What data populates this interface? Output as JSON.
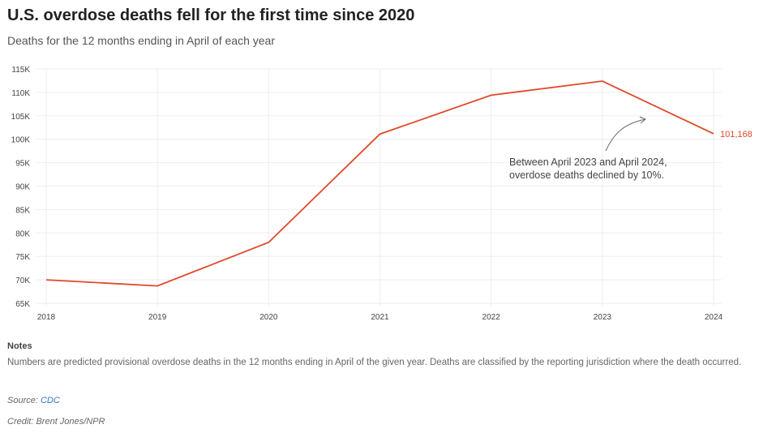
{
  "header": {
    "title": "U.S. overdose deaths fell for the first time since 2020",
    "subtitle": "Deaths for the 12 months ending in April of each year"
  },
  "chart_data": {
    "type": "line",
    "x": [
      "2018",
      "2019",
      "2020",
      "2021",
      "2022",
      "2023",
      "2024"
    ],
    "series": [
      {
        "values": [
          70000,
          68700,
          78000,
          101100,
          109400,
          112400,
          101168
        ],
        "color": "#e04a2b"
      }
    ],
    "ylim": [
      65000,
      115000
    ],
    "yticks": [
      "65K",
      "70K",
      "75K",
      "80K",
      "85K",
      "90K",
      "95K",
      "100K",
      "105K",
      "110K",
      "115K"
    ],
    "grid": true,
    "end_label": "101,168",
    "annotation": [
      "Between April 2023 and April 2024,",
      "overdose deaths declined by 10%."
    ]
  },
  "footer": {
    "notes_heading": "Notes",
    "notes": "Numbers are predicted provisional overdose deaths in the 12 months ending in April of the given year. Deaths are classified by the reporting jurisdiction where the death occurred.",
    "source_label": "Source: ",
    "source_link": "CDC",
    "credit": "Credit: Brent Jones/NPR"
  }
}
